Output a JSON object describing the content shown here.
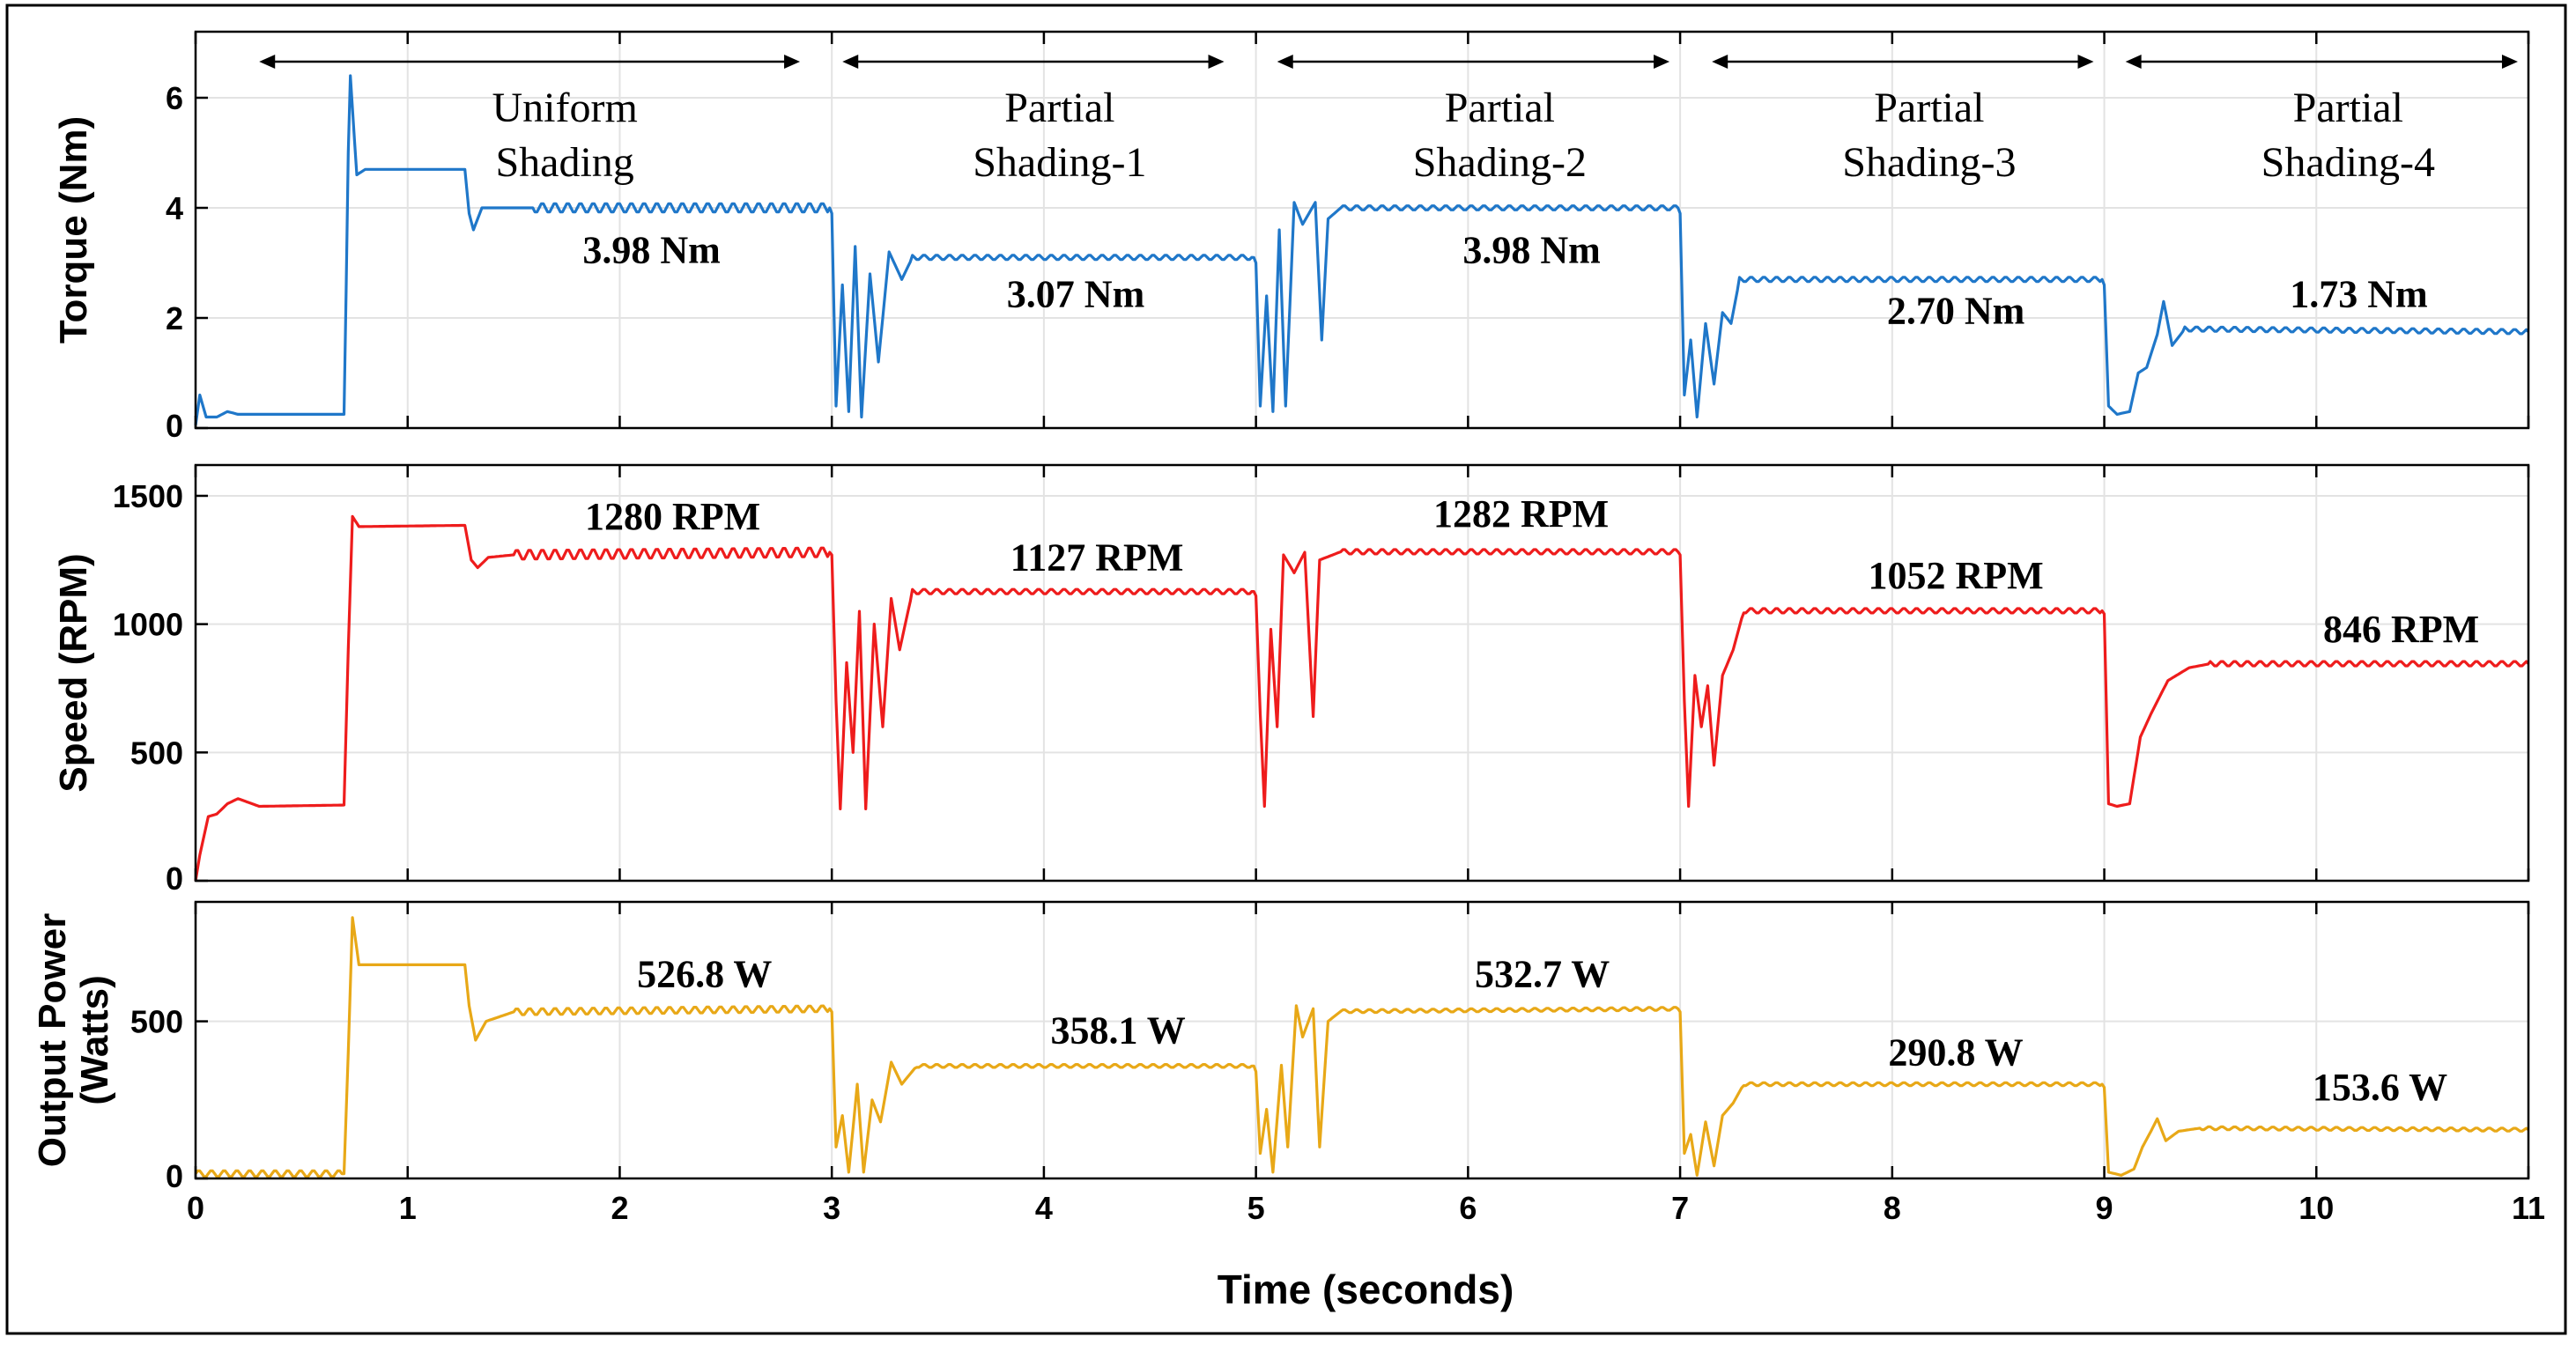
{
  "chart_data": {
    "type": "line",
    "xlabel": "Time (seconds)",
    "xlim": [
      0,
      11
    ],
    "xticks": [
      0,
      1,
      2,
      3,
      4,
      5,
      6,
      7,
      8,
      9,
      10,
      11
    ],
    "zones": [
      {
        "start": 0.3,
        "end": 2.85,
        "line1": "Uniform",
        "line2": "Shading"
      },
      {
        "start": 3.05,
        "end": 4.85,
        "line1": "Partial",
        "line2": "Shading-1"
      },
      {
        "start": 5.1,
        "end": 6.95,
        "line1": "Partial",
        "line2": "Shading-2"
      },
      {
        "start": 7.15,
        "end": 8.95,
        "line1": "Partial",
        "line2": "Shading-3"
      },
      {
        "start": 9.1,
        "end": 10.95,
        "line1": "Partial",
        "line2": "Shading-4"
      }
    ],
    "panels": [
      {
        "name": "torque",
        "ylabel_lines": [
          "Torque (Nm)"
        ],
        "color": "#1f77c9",
        "ylim": [
          0,
          7.2
        ],
        "yticks": [
          0,
          2,
          4,
          6
        ],
        "series": {
          "name": "Torque",
          "points": [
            [
              0,
              0.05
            ],
            [
              0.02,
              0.6
            ],
            [
              0.05,
              0.2
            ],
            [
              0.1,
              0.2
            ],
            [
              0.15,
              0.3
            ],
            [
              0.2,
              0.25
            ],
            [
              0.7,
              0.25
            ],
            [
              0.71,
              2.5
            ],
            [
              0.72,
              5.0
            ],
            [
              0.73,
              6.4
            ],
            [
              0.76,
              4.6
            ],
            [
              0.8,
              4.7
            ],
            [
              1.27,
              4.7
            ],
            [
              1.29,
              3.9
            ],
            [
              1.31,
              3.6
            ],
            [
              1.35,
              4.0
            ],
            [
              1.6,
              4.0
            ],
            [
              2.99,
              4.0
            ],
            [
              3.0,
              3.9
            ],
            [
              3.02,
              0.4
            ],
            [
              3.05,
              2.6
            ],
            [
              3.08,
              0.3
            ],
            [
              3.11,
              3.3
            ],
            [
              3.14,
              0.2
            ],
            [
              3.18,
              2.8
            ],
            [
              3.22,
              1.2
            ],
            [
              3.27,
              3.2
            ],
            [
              3.33,
              2.7
            ],
            [
              3.38,
              3.1
            ],
            [
              4.99,
              3.1
            ],
            [
              5.0,
              3.0
            ],
            [
              5.02,
              0.4
            ],
            [
              5.05,
              2.4
            ],
            [
              5.08,
              0.3
            ],
            [
              5.11,
              3.6
            ],
            [
              5.14,
              0.4
            ],
            [
              5.18,
              4.1
            ],
            [
              5.22,
              3.7
            ],
            [
              5.28,
              4.1
            ],
            [
              5.31,
              1.6
            ],
            [
              5.34,
              3.8
            ],
            [
              5.4,
              4.0
            ],
            [
              6.99,
              4.0
            ],
            [
              7.0,
              3.9
            ],
            [
              7.02,
              0.6
            ],
            [
              7.05,
              1.6
            ],
            [
              7.08,
              0.2
            ],
            [
              7.12,
              1.9
            ],
            [
              7.16,
              0.8
            ],
            [
              7.2,
              2.1
            ],
            [
              7.24,
              1.9
            ],
            [
              7.28,
              2.7
            ],
            [
              8.99,
              2.7
            ],
            [
              9.0,
              2.6
            ],
            [
              9.02,
              0.4
            ],
            [
              9.06,
              0.25
            ],
            [
              9.12,
              0.3
            ],
            [
              9.16,
              1.0
            ],
            [
              9.2,
              1.1
            ],
            [
              9.25,
              1.7
            ],
            [
              9.28,
              2.3
            ],
            [
              9.32,
              1.5
            ],
            [
              9.38,
              1.8
            ],
            [
              11,
              1.75
            ]
          ]
        },
        "annotations": [
          {
            "x": 2.15,
            "y": 3.0,
            "text": "3.98 Nm"
          },
          {
            "x": 4.15,
            "y": 2.2,
            "text": "3.07 Nm"
          },
          {
            "x": 6.3,
            "y": 3.0,
            "text": "3.98 Nm"
          },
          {
            "x": 8.3,
            "y": 1.9,
            "text": "2.70 Nm"
          },
          {
            "x": 10.2,
            "y": 2.2,
            "text": "1.73 Nm"
          }
        ]
      },
      {
        "name": "speed",
        "ylabel_lines": [
          "Speed (RPM)"
        ],
        "color": "#ee1c1c",
        "ylim": [
          0,
          1620
        ],
        "yticks": [
          0,
          500,
          1000,
          1500
        ],
        "series": {
          "name": "Speed",
          "points": [
            [
              0,
              0
            ],
            [
              0.02,
              100
            ],
            [
              0.06,
              250
            ],
            [
              0.1,
              260
            ],
            [
              0.15,
              300
            ],
            [
              0.2,
              320
            ],
            [
              0.3,
              290
            ],
            [
              0.7,
              295
            ],
            [
              0.72,
              900
            ],
            [
              0.74,
              1420
            ],
            [
              0.77,
              1380
            ],
            [
              1.27,
              1385
            ],
            [
              1.3,
              1250
            ],
            [
              1.33,
              1220
            ],
            [
              1.38,
              1260
            ],
            [
              1.5,
              1270
            ],
            [
              2.99,
              1280
            ],
            [
              3.0,
              1270
            ],
            [
              3.02,
              700
            ],
            [
              3.04,
              280
            ],
            [
              3.07,
              850
            ],
            [
              3.1,
              500
            ],
            [
              3.13,
              1050
            ],
            [
              3.16,
              280
            ],
            [
              3.2,
              1000
            ],
            [
              3.24,
              600
            ],
            [
              3.28,
              1100
            ],
            [
              3.32,
              900
            ],
            [
              3.38,
              1127
            ],
            [
              4.99,
              1127
            ],
            [
              5.0,
              1110
            ],
            [
              5.02,
              650
            ],
            [
              5.04,
              290
            ],
            [
              5.07,
              980
            ],
            [
              5.1,
              600
            ],
            [
              5.13,
              1270
            ],
            [
              5.18,
              1200
            ],
            [
              5.23,
              1280
            ],
            [
              5.27,
              640
            ],
            [
              5.3,
              1250
            ],
            [
              5.4,
              1282
            ],
            [
              6.99,
              1282
            ],
            [
              7.0,
              1270
            ],
            [
              7.02,
              700
            ],
            [
              7.04,
              290
            ],
            [
              7.07,
              800
            ],
            [
              7.1,
              600
            ],
            [
              7.13,
              760
            ],
            [
              7.16,
              450
            ],
            [
              7.2,
              800
            ],
            [
              7.25,
              900
            ],
            [
              7.3,
              1052
            ],
            [
              8.99,
              1052
            ],
            [
              9.0,
              1040
            ],
            [
              9.02,
              300
            ],
            [
              9.06,
              290
            ],
            [
              9.12,
              300
            ],
            [
              9.17,
              560
            ],
            [
              9.22,
              650
            ],
            [
              9.3,
              780
            ],
            [
              9.4,
              830
            ],
            [
              9.5,
              846
            ],
            [
              11,
              846
            ]
          ]
        },
        "annotations": [
          {
            "x": 2.25,
            "y": 1370,
            "text": "1280 RPM"
          },
          {
            "x": 4.25,
            "y": 1210,
            "text": "1127 RPM"
          },
          {
            "x": 6.25,
            "y": 1380,
            "text": "1282 RPM"
          },
          {
            "x": 8.3,
            "y": 1140,
            "text": "1052 RPM"
          },
          {
            "x": 10.4,
            "y": 930,
            "text": "846 RPM"
          }
        ]
      },
      {
        "name": "power",
        "ylabel_lines": [
          "Output Power",
          "(Watts)"
        ],
        "color": "#e8a817",
        "ylim": [
          0,
          880
        ],
        "yticks": [
          0,
          500
        ],
        "series": {
          "name": "Output Power",
          "points": [
            [
              0,
              15
            ],
            [
              0.7,
              15
            ],
            [
              0.72,
              400
            ],
            [
              0.74,
              830
            ],
            [
              0.77,
              680
            ],
            [
              1.27,
              680
            ],
            [
              1.29,
              550
            ],
            [
              1.32,
              440
            ],
            [
              1.37,
              500
            ],
            [
              1.5,
              530
            ],
            [
              2.99,
              540
            ],
            [
              3.0,
              530
            ],
            [
              3.02,
              100
            ],
            [
              3.05,
              200
            ],
            [
              3.08,
              20
            ],
            [
              3.12,
              300
            ],
            [
              3.15,
              20
            ],
            [
              3.19,
              250
            ],
            [
              3.23,
              180
            ],
            [
              3.28,
              370
            ],
            [
              3.33,
              300
            ],
            [
              3.4,
              358
            ],
            [
              4.99,
              358
            ],
            [
              5.0,
              340
            ],
            [
              5.02,
              80
            ],
            [
              5.05,
              220
            ],
            [
              5.08,
              20
            ],
            [
              5.12,
              360
            ],
            [
              5.15,
              100
            ],
            [
              5.19,
              550
            ],
            [
              5.22,
              450
            ],
            [
              5.27,
              540
            ],
            [
              5.3,
              100
            ],
            [
              5.34,
              500
            ],
            [
              5.4,
              532
            ],
            [
              6.99,
              540
            ],
            [
              7.0,
              530
            ],
            [
              7.02,
              80
            ],
            [
              7.05,
              140
            ],
            [
              7.08,
              10
            ],
            [
              7.12,
              180
            ],
            [
              7.16,
              40
            ],
            [
              7.2,
              200
            ],
            [
              7.25,
              240
            ],
            [
              7.3,
              300
            ],
            [
              8.99,
              300
            ],
            [
              9.0,
              290
            ],
            [
              9.02,
              20
            ],
            [
              9.08,
              10
            ],
            [
              9.14,
              30
            ],
            [
              9.18,
              100
            ],
            [
              9.22,
              150
            ],
            [
              9.25,
              190
            ],
            [
              9.29,
              120
            ],
            [
              9.35,
              150
            ],
            [
              9.45,
              160
            ],
            [
              11,
              155
            ]
          ]
        },
        "annotations": [
          {
            "x": 2.4,
            "y": 610,
            "text": "526.8 W"
          },
          {
            "x": 4.35,
            "y": 430,
            "text": "358.1 W"
          },
          {
            "x": 6.35,
            "y": 610,
            "text": "532.7 W"
          },
          {
            "x": 8.3,
            "y": 360,
            "text": "290.8 W"
          },
          {
            "x": 10.3,
            "y": 250,
            "text": "153.6 W"
          }
        ]
      }
    ]
  }
}
